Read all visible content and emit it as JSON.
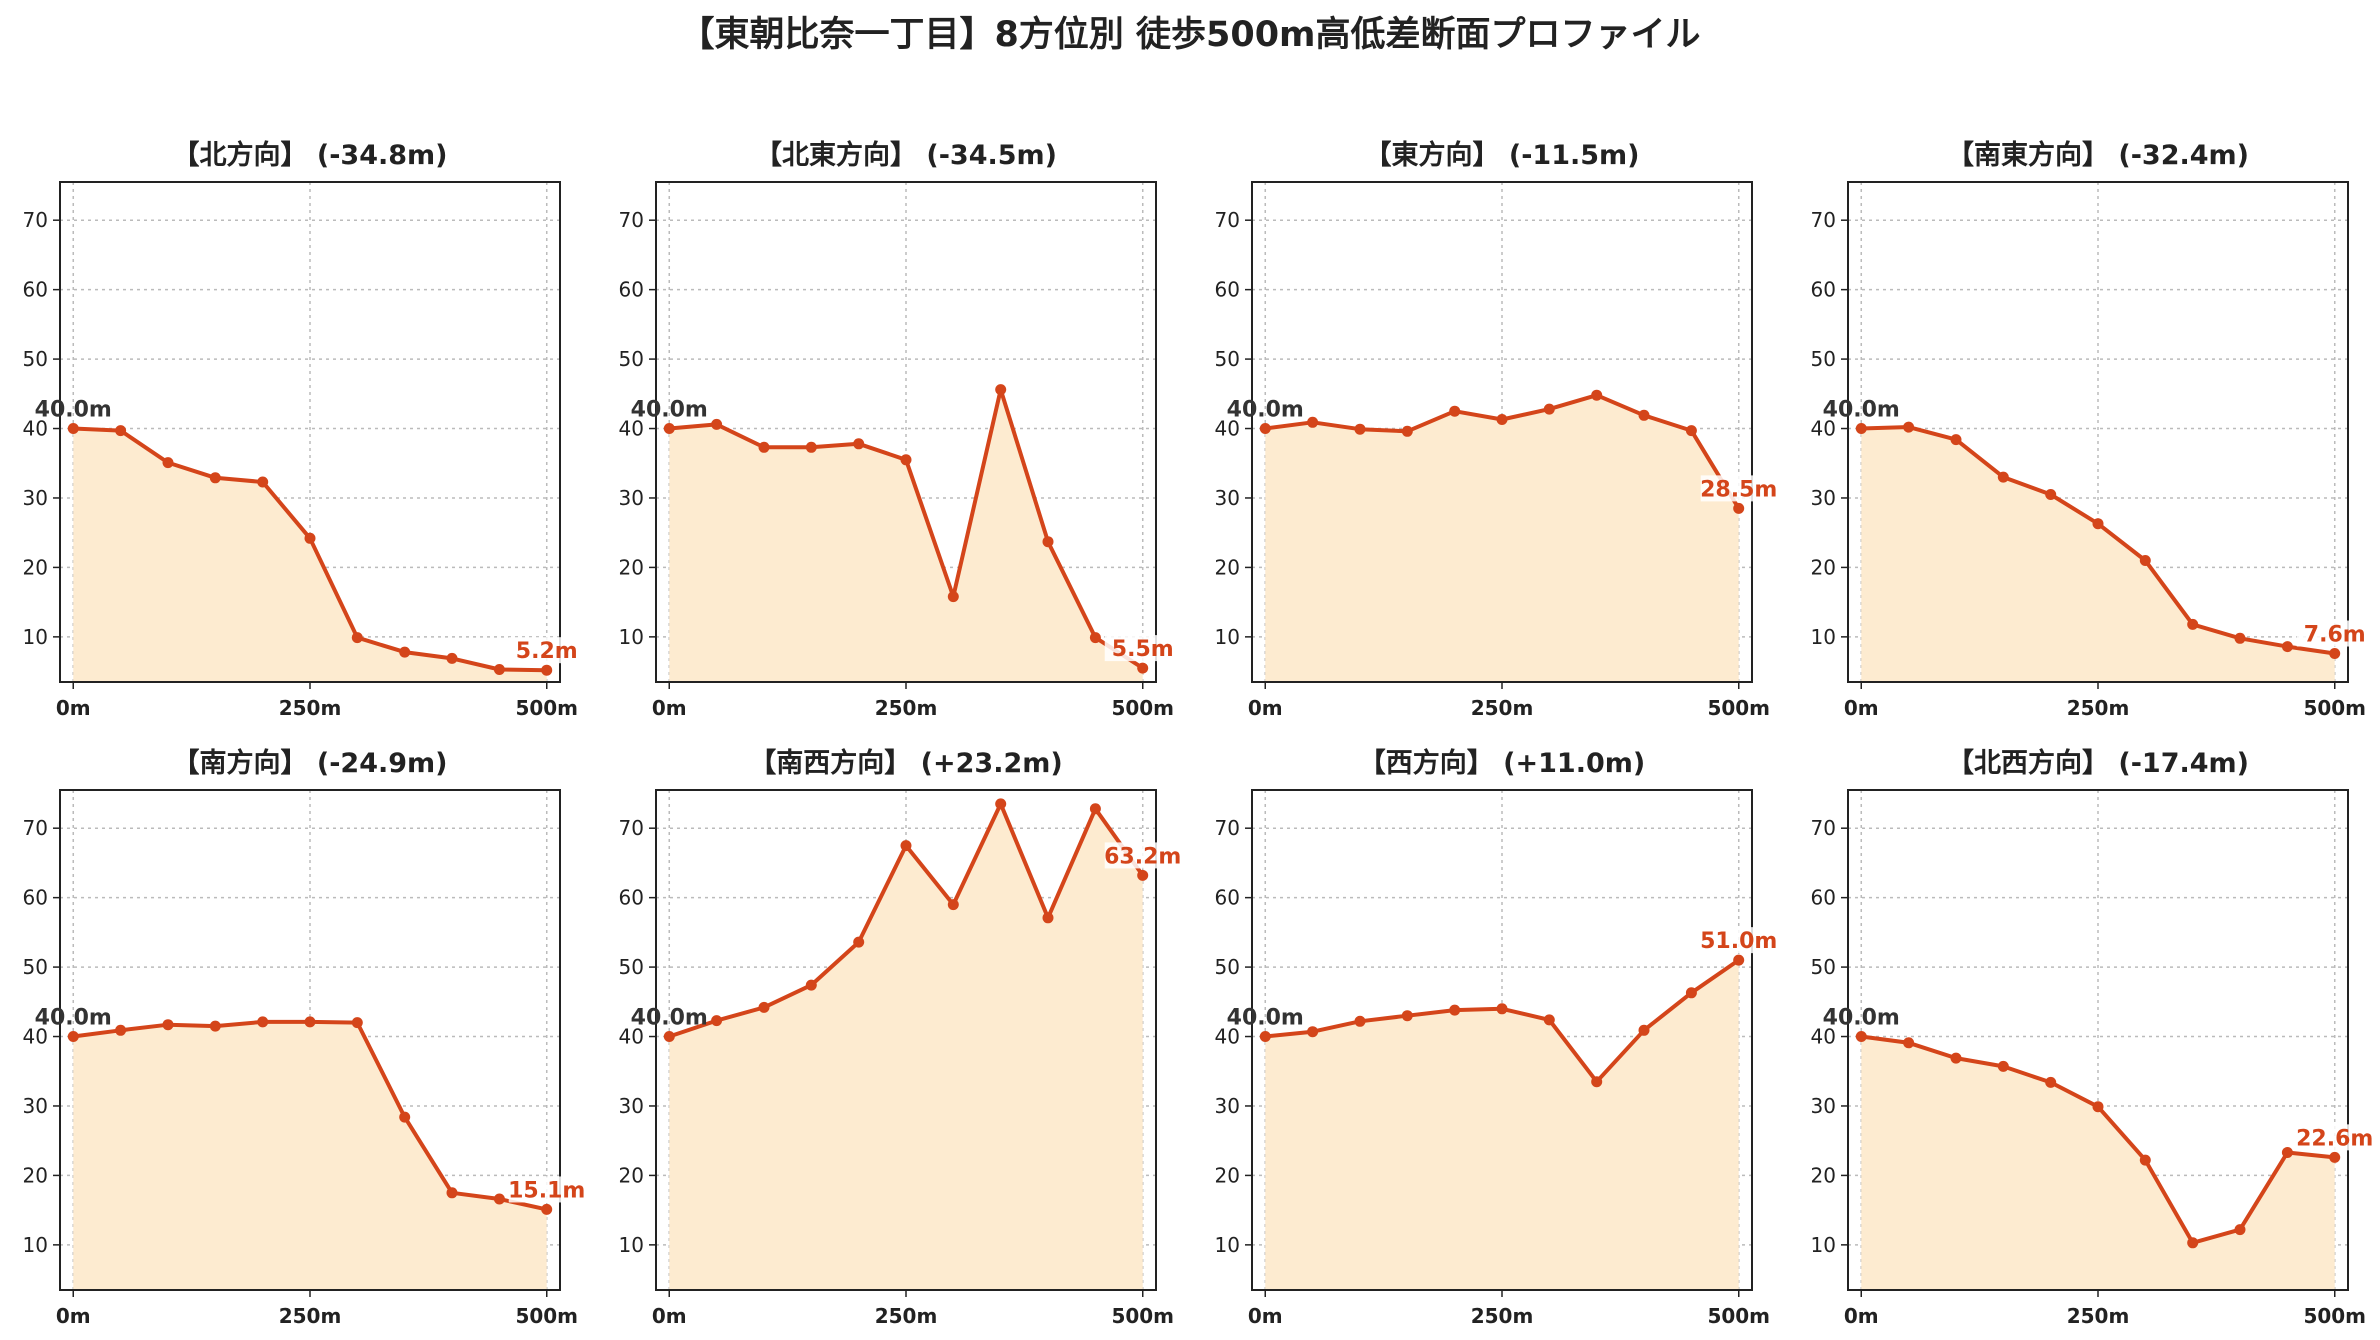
{
  "title": "【東朝比奈一丁目】8方位別 徒歩500m高低差断面プロファイル",
  "colors": {
    "line": "#d4451a",
    "fill": "#fdebd0",
    "grid": "#bbbbbb",
    "axis": "#222222"
  },
  "chart_data": [
    {
      "type": "area",
      "title": "【北方向】 (-34.8m)",
      "x": [
        0,
        50,
        100,
        150,
        200,
        250,
        300,
        350,
        400,
        450,
        500
      ],
      "values": [
        40.0,
        39.7,
        35.1,
        32.9,
        32.3,
        24.2,
        9.9,
        7.8,
        6.9,
        5.3,
        5.2
      ],
      "start_label": "40.0m",
      "end_label": "5.2m",
      "xticks": [
        "0m",
        "250m",
        "500m"
      ],
      "yticks": [
        "10",
        "20",
        "30",
        "40",
        "50",
        "60",
        "70"
      ],
      "ylim": [
        3.5,
        75.5
      ],
      "xlim": [
        -14,
        514
      ],
      "grid": true
    },
    {
      "type": "area",
      "title": "【北東方向】 (-34.5m)",
      "x": [
        0,
        50,
        100,
        150,
        200,
        250,
        300,
        350,
        400,
        450,
        500
      ],
      "values": [
        40.0,
        40.6,
        37.3,
        37.3,
        37.8,
        35.5,
        15.8,
        45.6,
        23.7,
        9.9,
        5.5
      ],
      "start_label": "40.0m",
      "end_label": "5.5m",
      "xticks": [
        "0m",
        "250m",
        "500m"
      ],
      "yticks": [
        "10",
        "20",
        "30",
        "40",
        "50",
        "60",
        "70"
      ],
      "ylim": [
        3.5,
        75.5
      ],
      "xlim": [
        -14,
        514
      ],
      "grid": true
    },
    {
      "type": "area",
      "title": "【東方向】 (-11.5m)",
      "x": [
        0,
        50,
        100,
        150,
        200,
        250,
        300,
        350,
        400,
        450,
        500
      ],
      "values": [
        40.0,
        40.9,
        39.9,
        39.6,
        42.5,
        41.3,
        42.8,
        44.8,
        41.9,
        39.7,
        28.5
      ],
      "start_label": "40.0m",
      "end_label": "28.5m",
      "xticks": [
        "0m",
        "250m",
        "500m"
      ],
      "yticks": [
        "10",
        "20",
        "30",
        "40",
        "50",
        "60",
        "70"
      ],
      "ylim": [
        3.5,
        75.5
      ],
      "xlim": [
        -14,
        514
      ],
      "grid": true
    },
    {
      "type": "area",
      "title": "【南東方向】 (-32.4m)",
      "x": [
        0,
        50,
        100,
        150,
        200,
        250,
        300,
        350,
        400,
        450,
        500
      ],
      "values": [
        40.0,
        40.2,
        38.4,
        33.0,
        30.5,
        26.3,
        21.0,
        11.8,
        9.8,
        8.6,
        7.6
      ],
      "start_label": "40.0m",
      "end_label": "7.6m",
      "xticks": [
        "0m",
        "250m",
        "500m"
      ],
      "yticks": [
        "10",
        "20",
        "30",
        "40",
        "50",
        "60",
        "70"
      ],
      "ylim": [
        3.5,
        75.5
      ],
      "xlim": [
        -14,
        514
      ],
      "grid": true
    },
    {
      "type": "area",
      "title": "【南方向】 (-24.9m)",
      "x": [
        0,
        50,
        100,
        150,
        200,
        250,
        300,
        350,
        400,
        450,
        500
      ],
      "values": [
        40.0,
        40.9,
        41.7,
        41.5,
        42.1,
        42.1,
        42.0,
        28.4,
        17.5,
        16.6,
        15.1
      ],
      "start_label": "40.0m",
      "end_label": "15.1m",
      "xticks": [
        "0m",
        "250m",
        "500m"
      ],
      "yticks": [
        "10",
        "20",
        "30",
        "40",
        "50",
        "60",
        "70"
      ],
      "ylim": [
        3.5,
        75.5
      ],
      "xlim": [
        -14,
        514
      ],
      "grid": true
    },
    {
      "type": "area",
      "title": "【南西方向】 (+23.2m)",
      "x": [
        0,
        50,
        100,
        150,
        200,
        250,
        300,
        350,
        400,
        450,
        500
      ],
      "values": [
        40.0,
        42.3,
        44.2,
        47.4,
        53.6,
        67.5,
        59.0,
        73.5,
        57.1,
        72.8,
        63.2
      ],
      "start_label": "40.0m",
      "end_label": "63.2m",
      "xticks": [
        "0m",
        "250m",
        "500m"
      ],
      "yticks": [
        "10",
        "20",
        "30",
        "40",
        "50",
        "60",
        "70"
      ],
      "ylim": [
        3.5,
        75.5
      ],
      "xlim": [
        -14,
        514
      ],
      "grid": true
    },
    {
      "type": "area",
      "title": "【西方向】 (+11.0m)",
      "x": [
        0,
        50,
        100,
        150,
        200,
        250,
        300,
        350,
        400,
        450,
        500
      ],
      "values": [
        40.0,
        40.7,
        42.2,
        43.0,
        43.8,
        44.0,
        42.4,
        33.5,
        40.9,
        46.3,
        51.0
      ],
      "start_label": "40.0m",
      "end_label": "51.0m",
      "xticks": [
        "0m",
        "250m",
        "500m"
      ],
      "yticks": [
        "10",
        "20",
        "30",
        "40",
        "50",
        "60",
        "70"
      ],
      "ylim": [
        3.5,
        75.5
      ],
      "xlim": [
        -14,
        514
      ],
      "grid": true
    },
    {
      "type": "area",
      "title": "【北西方向】 (-17.4m)",
      "x": [
        0,
        50,
        100,
        150,
        200,
        250,
        300,
        350,
        400,
        450,
        500
      ],
      "values": [
        40.0,
        39.1,
        36.9,
        35.7,
        33.4,
        29.9,
        22.2,
        10.3,
        12.2,
        23.3,
        22.6
      ],
      "start_label": "40.0m",
      "end_label": "22.6m",
      "xticks": [
        "0m",
        "250m",
        "500m"
      ],
      "yticks": [
        "10",
        "20",
        "30",
        "40",
        "50",
        "60",
        "70"
      ],
      "ylim": [
        3.5,
        75.5
      ],
      "xlim": [
        -14,
        514
      ],
      "grid": true
    }
  ]
}
